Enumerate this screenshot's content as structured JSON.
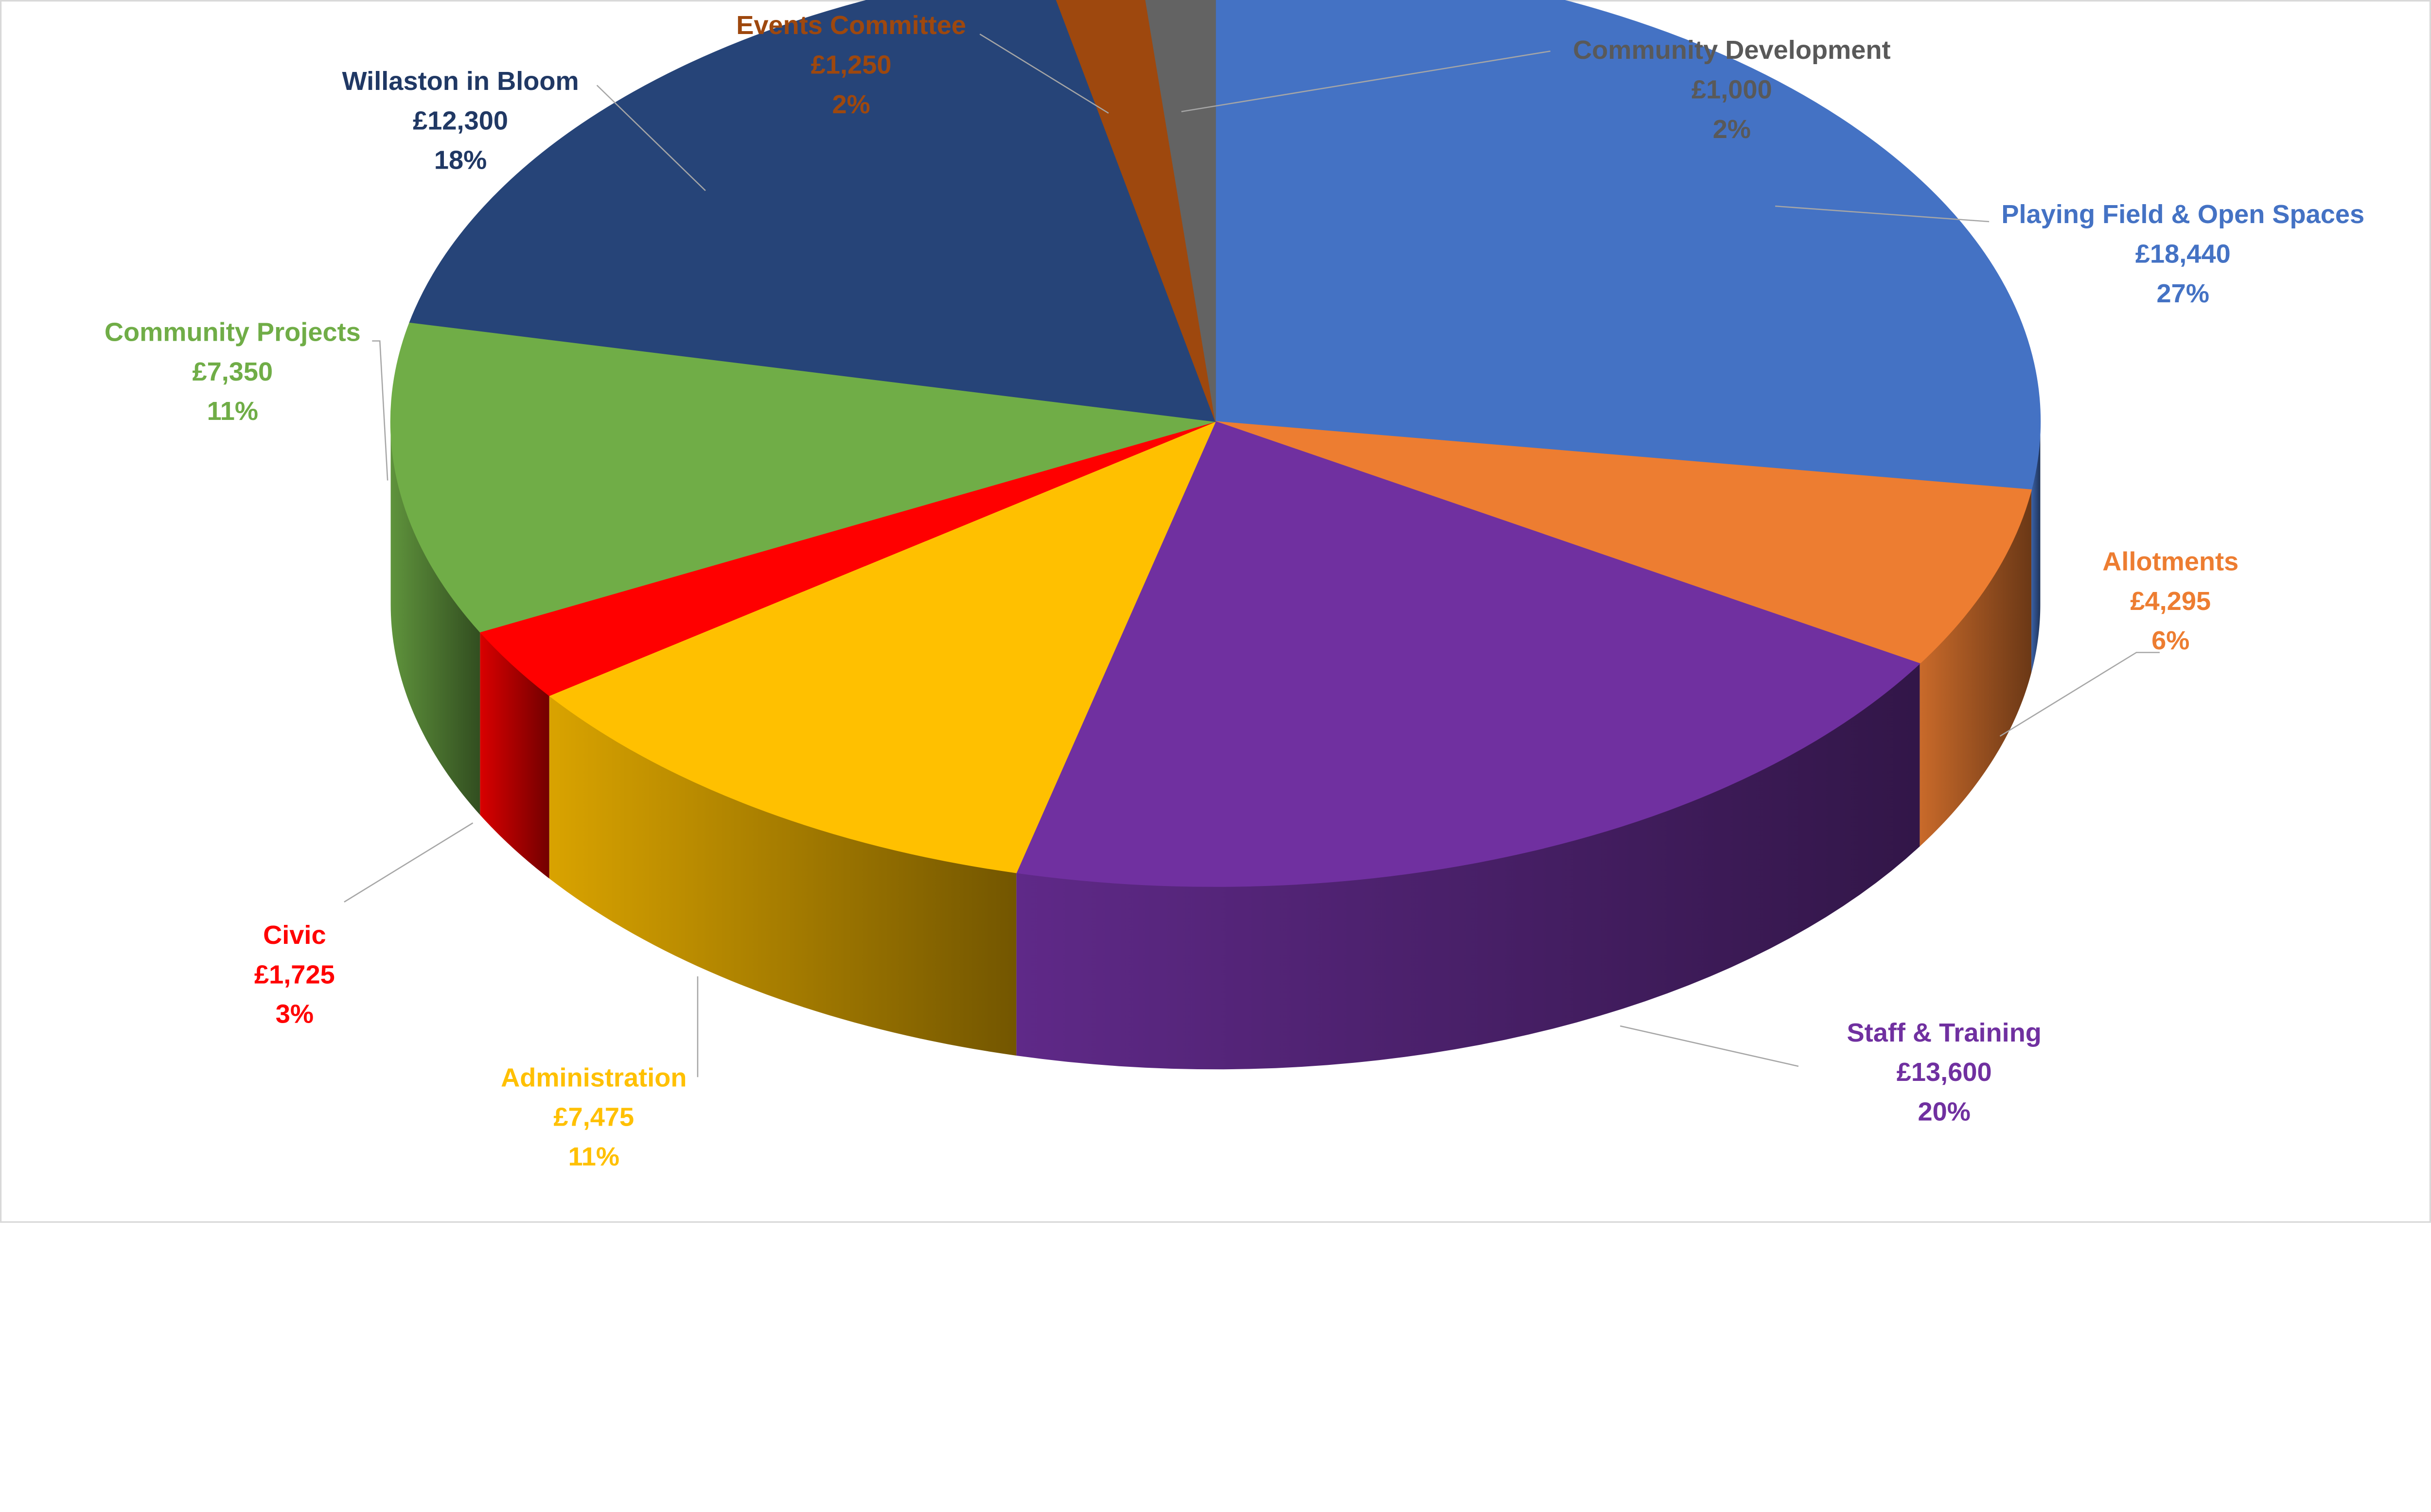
{
  "chart_data": {
    "type": "pie",
    "style": "3d",
    "title": "",
    "start": "top",
    "direction": "clockwise",
    "legend": "none",
    "data_labels": "outside with leader lines (category, value, percent)",
    "slices": [
      {
        "label": "Playing Field & Open Spaces",
        "value": 18440,
        "value_text": "£18,440",
        "percent": "27%",
        "color": "#4472C4"
      },
      {
        "label": "Allotments",
        "value": 4295,
        "value_text": "£4,295",
        "percent": "6%",
        "color": "#ED7D31"
      },
      {
        "label": "Staff & Training",
        "value": 13600,
        "value_text": "£13,600",
        "percent": "20%",
        "color": "#7030A0"
      },
      {
        "label": "Administration",
        "value": 7475,
        "value_text": "£7,475",
        "percent": "11%",
        "color": "#FFC000"
      },
      {
        "label": "Civic",
        "value": 1725,
        "value_text": "£1,725",
        "percent": "3%",
        "color": "#FF0000"
      },
      {
        "label": "Community Projects",
        "value": 7350,
        "value_text": "£7,350",
        "percent": "11%",
        "color": "#70AD47"
      },
      {
        "label": "Willaston in Bloom",
        "value": 12300,
        "value_text": "£12,300",
        "percent": "18%",
        "color": "#264478"
      },
      {
        "label": "Events Committee",
        "value": 1250,
        "value_text": "£1,250",
        "percent": "2%",
        "color": "#9E480E"
      },
      {
        "label": "Community Development",
        "value": 1000,
        "value_text": "£1,000",
        "percent": "2%",
        "color": "#636363"
      }
    ]
  }
}
